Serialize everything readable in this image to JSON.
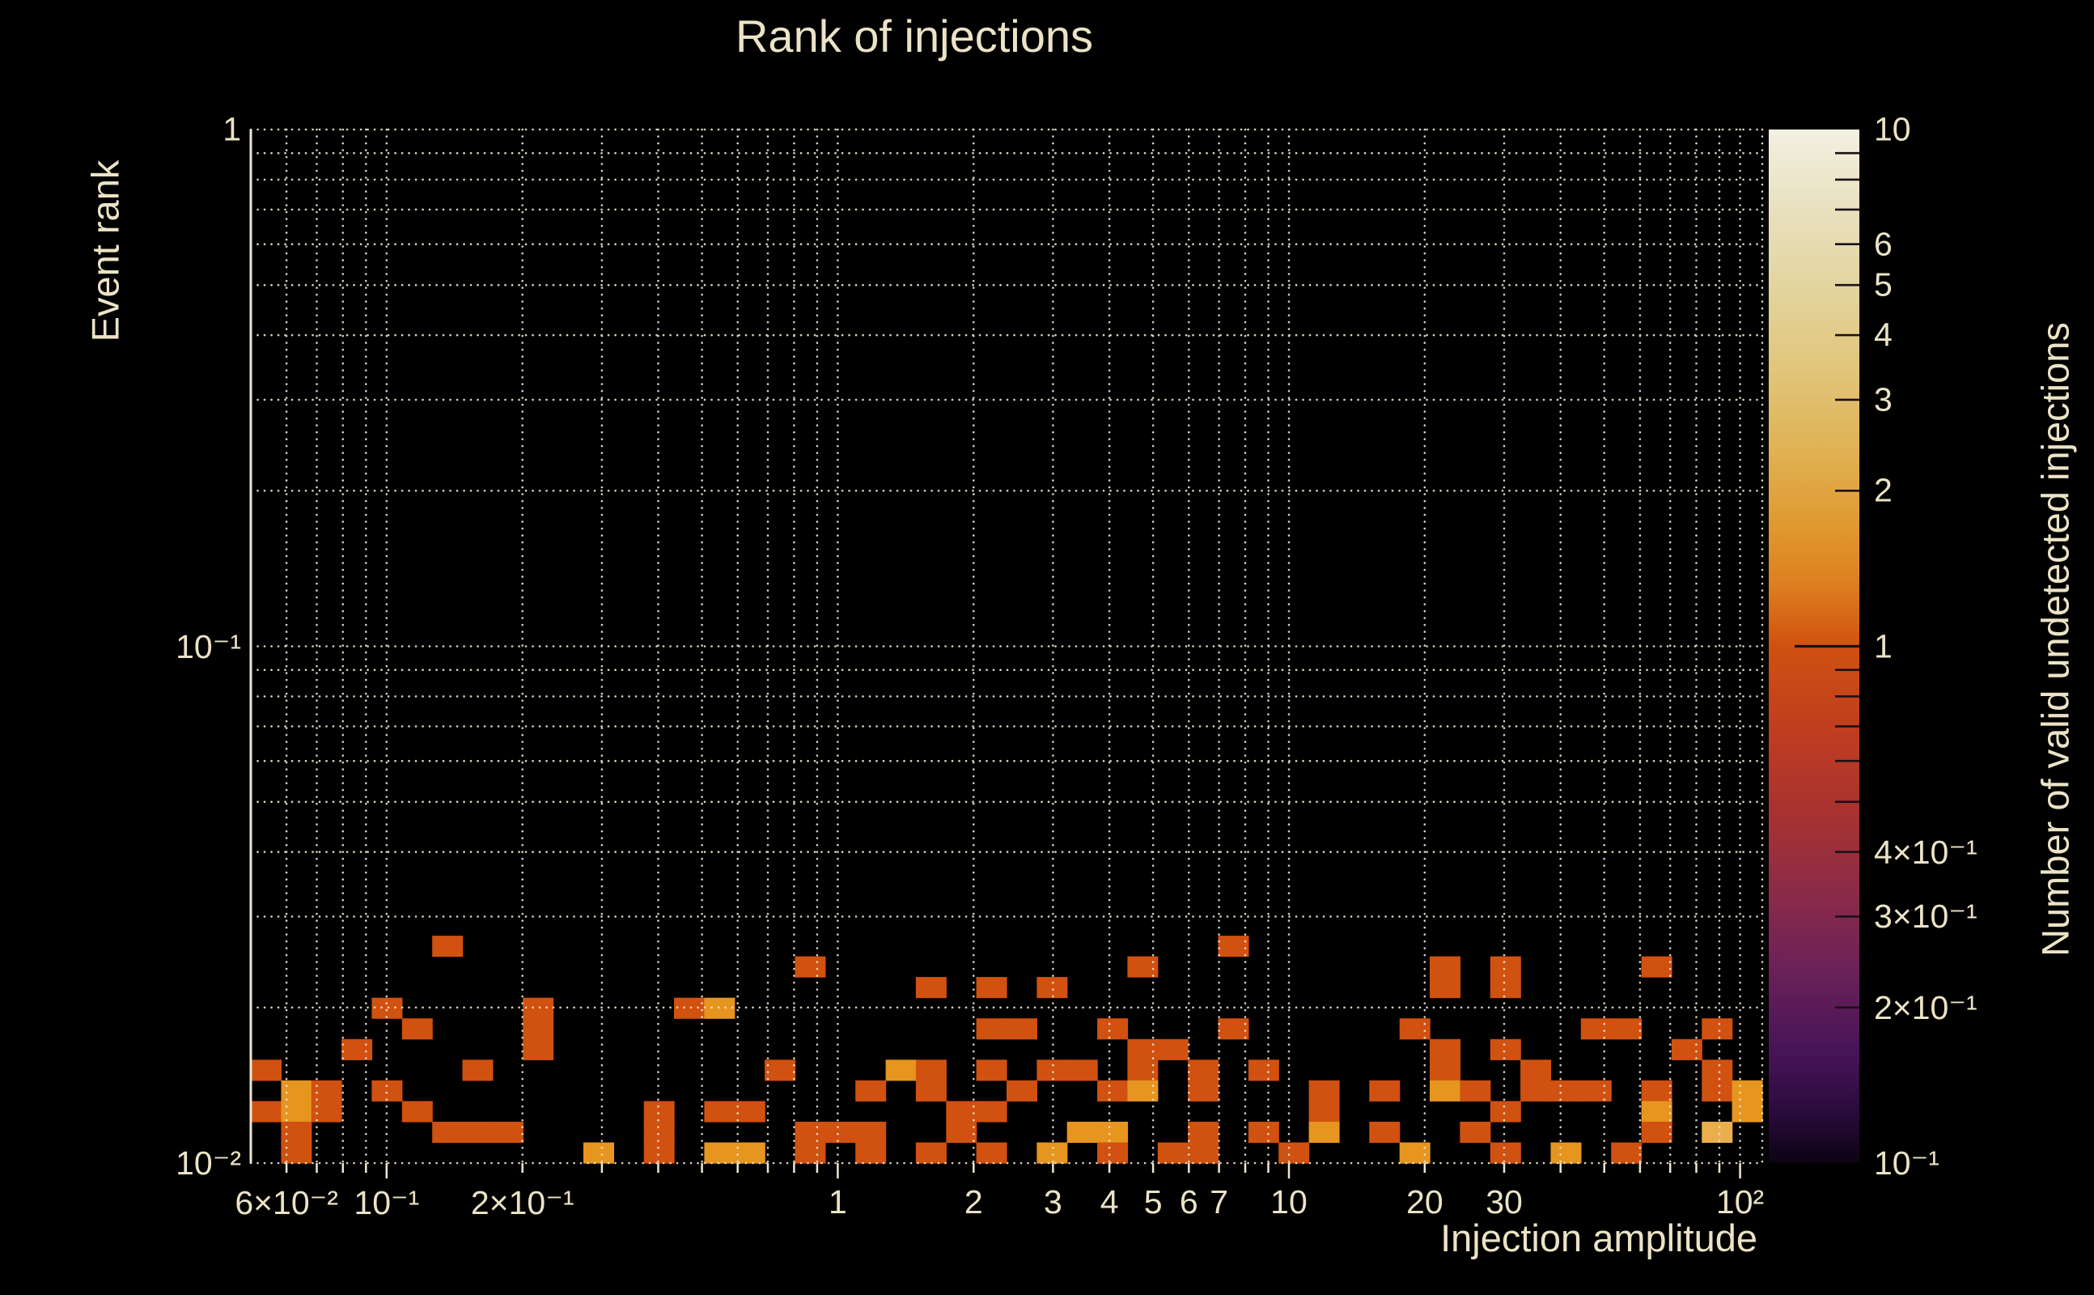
{
  "chart_data": {
    "type": "heatmap",
    "title": "Rank of injections",
    "xlabel": "Injection amplitude",
    "ylabel": "Event rank",
    "colorbar_label": "Number of valid undetected injections",
    "x_scale": "log",
    "y_scale": "log",
    "color_scale": "log",
    "x_range": [
      0.05,
      112
    ],
    "y_range": [
      0.01,
      1
    ],
    "color_range": [
      0.1,
      10
    ],
    "x_bins": 50,
    "y_bins": 50,
    "grid": "dotted",
    "background_color": "#000000",
    "text_color": "#ece3c6",
    "grid_color": "#efe6d2",
    "x_tick_labels": [
      {
        "v": 0.06,
        "t": "6×10⁻²"
      },
      {
        "v": 0.1,
        "t": "10⁻¹"
      },
      {
        "v": 0.2,
        "t": "2×10⁻¹"
      },
      {
        "v": 1,
        "t": "1"
      },
      {
        "v": 2,
        "t": "2"
      },
      {
        "v": 3,
        "t": "3"
      },
      {
        "v": 4,
        "t": "4"
      },
      {
        "v": 5,
        "t": "5"
      },
      {
        "v": 6,
        "t": "6"
      },
      {
        "v": 7,
        "t": "7"
      },
      {
        "v": 10,
        "t": "10"
      },
      {
        "v": 20,
        "t": "20"
      },
      {
        "v": 30,
        "t": "30"
      },
      {
        "v": 100,
        "t": "10²"
      }
    ],
    "y_tick_labels": [
      {
        "v": 1,
        "t": "1"
      },
      {
        "v": 0.1,
        "t": "10⁻¹"
      },
      {
        "v": 0.01,
        "t": "10⁻²"
      }
    ],
    "colorbar_tick_labels": [
      {
        "v": 10,
        "t": "10"
      },
      {
        "v": 6,
        "t": "6"
      },
      {
        "v": 5,
        "t": "5"
      },
      {
        "v": 4,
        "t": "4"
      },
      {
        "v": 3,
        "t": "3"
      },
      {
        "v": 2,
        "t": "2"
      },
      {
        "v": 1,
        "t": "1"
      },
      {
        "v": 0.4,
        "t": "4×10⁻¹"
      },
      {
        "v": 0.3,
        "t": "3×10⁻¹"
      },
      {
        "v": 0.2,
        "t": "2×10⁻¹"
      },
      {
        "v": 0.1,
        "t": "10⁻¹"
      }
    ],
    "value_colors": {
      "1": "#d05110",
      "2": "#e6951f",
      "3": "#eaaf4c"
    },
    "colormap_stops": [
      [
        0.0,
        "#0b0312"
      ],
      [
        0.05,
        "#2a0b3d"
      ],
      [
        0.107,
        "#471458"
      ],
      [
        0.185,
        "#6a2158"
      ],
      [
        0.263,
        "#8c2b47"
      ],
      [
        0.34,
        "#a83230"
      ],
      [
        0.42,
        "#c03d20"
      ],
      [
        0.5,
        "#d0510f"
      ],
      [
        0.56,
        "#dd7f20"
      ],
      [
        0.615,
        "#e0982f"
      ],
      [
        0.69,
        "#e0b254"
      ],
      [
        0.77,
        "#e1c67c"
      ],
      [
        0.85,
        "#e3d5a0"
      ],
      [
        0.93,
        "#e9e2c2"
      ],
      [
        1.0,
        "#f4f0e2"
      ]
    ],
    "cells": [
      [
        0,
        4,
        1
      ],
      [
        0,
        2,
        1
      ],
      [
        1,
        3,
        2
      ],
      [
        1,
        2,
        2
      ],
      [
        1,
        1,
        1
      ],
      [
        1,
        0,
        1
      ],
      [
        2,
        3,
        1
      ],
      [
        2,
        2,
        1
      ],
      [
        3,
        5,
        1
      ],
      [
        4,
        7,
        1
      ],
      [
        4,
        3,
        1
      ],
      [
        5,
        6,
        1
      ],
      [
        5,
        2,
        1
      ],
      [
        6,
        10,
        1
      ],
      [
        6,
        1,
        1
      ],
      [
        7,
        4,
        1
      ],
      [
        7,
        1,
        1
      ],
      [
        8,
        1,
        1
      ],
      [
        9,
        7,
        1
      ],
      [
        9,
        6,
        1
      ],
      [
        9,
        5,
        1
      ],
      [
        11,
        0,
        2
      ],
      [
        13,
        2,
        1
      ],
      [
        13,
        1,
        1
      ],
      [
        13,
        0,
        1
      ],
      [
        14,
        7,
        1
      ],
      [
        15,
        7,
        2
      ],
      [
        15,
        2,
        1
      ],
      [
        15,
        0,
        2
      ],
      [
        16,
        2,
        1
      ],
      [
        16,
        0,
        2
      ],
      [
        17,
        4,
        1
      ],
      [
        18,
        9,
        1
      ],
      [
        18,
        1,
        1
      ],
      [
        18,
        0,
        1
      ],
      [
        19,
        1,
        1
      ],
      [
        20,
        3,
        1
      ],
      [
        20,
        1,
        1
      ],
      [
        20,
        0,
        1
      ],
      [
        21,
        4,
        2
      ],
      [
        22,
        8,
        1
      ],
      [
        22,
        4,
        1
      ],
      [
        22,
        3,
        1
      ],
      [
        22,
        0,
        1
      ],
      [
        23,
        2,
        1
      ],
      [
        23,
        1,
        1
      ],
      [
        24,
        8,
        1
      ],
      [
        24,
        6,
        1
      ],
      [
        24,
        4,
        1
      ],
      [
        24,
        2,
        1
      ],
      [
        24,
        0,
        1
      ],
      [
        25,
        6,
        1
      ],
      [
        25,
        3,
        1
      ],
      [
        26,
        8,
        1
      ],
      [
        26,
        4,
        1
      ],
      [
        26,
        0,
        2
      ],
      [
        27,
        4,
        1
      ],
      [
        27,
        1,
        2
      ],
      [
        28,
        6,
        1
      ],
      [
        28,
        3,
        1
      ],
      [
        28,
        1,
        2
      ],
      [
        28,
        0,
        1
      ],
      [
        29,
        9,
        1
      ],
      [
        29,
        5,
        1
      ],
      [
        29,
        4,
        1
      ],
      [
        29,
        3,
        2
      ],
      [
        30,
        5,
        1
      ],
      [
        30,
        0,
        1
      ],
      [
        31,
        4,
        1
      ],
      [
        31,
        3,
        1
      ],
      [
        31,
        1,
        1
      ],
      [
        31,
        0,
        1
      ],
      [
        32,
        10,
        1
      ],
      [
        32,
        6,
        1
      ],
      [
        33,
        4,
        1
      ],
      [
        33,
        1,
        1
      ],
      [
        34,
        0,
        1
      ],
      [
        35,
        3,
        1
      ],
      [
        35,
        2,
        1
      ],
      [
        35,
        1,
        2
      ],
      [
        37,
        3,
        1
      ],
      [
        37,
        1,
        1
      ],
      [
        38,
        6,
        1
      ],
      [
        38,
        0,
        2
      ],
      [
        39,
        9,
        1
      ],
      [
        39,
        8,
        1
      ],
      [
        39,
        5,
        1
      ],
      [
        39,
        4,
        1
      ],
      [
        39,
        3,
        2
      ],
      [
        40,
        3,
        1
      ],
      [
        40,
        1,
        1
      ],
      [
        41,
        9,
        1
      ],
      [
        41,
        8,
        1
      ],
      [
        41,
        5,
        1
      ],
      [
        41,
        2,
        1
      ],
      [
        41,
        0,
        1
      ],
      [
        42,
        4,
        1
      ],
      [
        42,
        3,
        1
      ],
      [
        43,
        3,
        1
      ],
      [
        43,
        0,
        2
      ],
      [
        44,
        6,
        1
      ],
      [
        44,
        3,
        1
      ],
      [
        45,
        6,
        1
      ],
      [
        45,
        0,
        1
      ],
      [
        46,
        9,
        1
      ],
      [
        46,
        3,
        1
      ],
      [
        46,
        2,
        2
      ],
      [
        46,
        1,
        1
      ],
      [
        47,
        5,
        1
      ],
      [
        48,
        6,
        1
      ],
      [
        48,
        4,
        1
      ],
      [
        48,
        3,
        1
      ],
      [
        48,
        1,
        3
      ],
      [
        49,
        3,
        2
      ],
      [
        49,
        2,
        2
      ]
    ]
  }
}
